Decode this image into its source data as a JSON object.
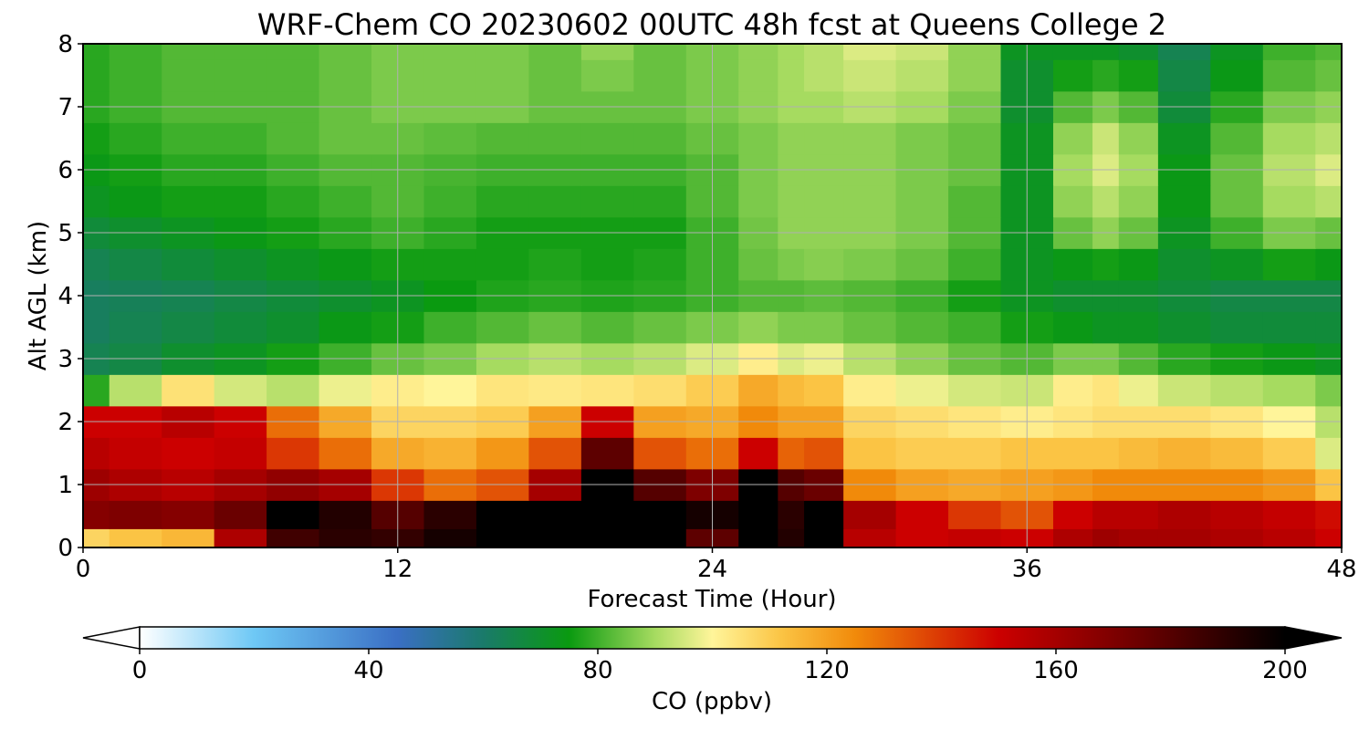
{
  "chart_data": {
    "type": "heatmap",
    "title": "WRF-Chem CO  20230602 00UTC 48h fcst at Queens College 2",
    "xlabel": "Forecast Time (Hour)",
    "ylabel": "Alt AGL (km)",
    "xlim": [
      0,
      48
    ],
    "ylim": [
      0,
      8
    ],
    "xticks": [
      0,
      12,
      24,
      36,
      48
    ],
    "yticks": [
      0,
      1,
      2,
      3,
      4,
      5,
      6,
      7,
      8
    ],
    "grid": true,
    "colorbar": {
      "label": "CO  (ppbv)",
      "range": [
        0,
        200
      ],
      "ticks": [
        0,
        40,
        80,
        120,
        160,
        200
      ],
      "extend": "both",
      "stops": [
        {
          "value": 0,
          "color": "#ffffff"
        },
        {
          "value": 20,
          "color": "#6ec8f5"
        },
        {
          "value": 45,
          "color": "#3a6fc4"
        },
        {
          "value": 60,
          "color": "#1a7a6a"
        },
        {
          "value": 75,
          "color": "#0a9a10"
        },
        {
          "value": 90,
          "color": "#a6db60"
        },
        {
          "value": 100,
          "color": "#fff59a"
        },
        {
          "value": 112,
          "color": "#fbc444"
        },
        {
          "value": 125,
          "color": "#f18a0a"
        },
        {
          "value": 150,
          "color": "#cc0000"
        },
        {
          "value": 175,
          "color": "#6a0000"
        },
        {
          "value": 200,
          "color": "#000000"
        }
      ]
    },
    "hours": [
      0,
      2,
      4,
      6,
      8,
      10,
      12,
      14,
      16,
      18,
      20,
      22,
      24,
      26,
      27,
      28,
      30,
      32,
      34,
      36,
      38,
      39,
      40,
      42,
      44,
      46,
      48
    ],
    "altitudes_km": [
      0.1,
      0.5,
      1.0,
      1.5,
      2.0,
      2.5,
      3.0,
      3.5,
      4.0,
      4.5,
      5.0,
      5.5,
      6.0,
      6.5,
      7.0,
      7.5,
      8.0
    ],
    "co_ppbv": [
      [
        108,
        112,
        115,
        158,
        185,
        190,
        188,
        195,
        200,
        200,
        200,
        200,
        178,
        200,
        192,
        200,
        155,
        150,
        152,
        150,
        158,
        162,
        160,
        160,
        158,
        155,
        150
      ],
      [
        168,
        170,
        168,
        175,
        200,
        192,
        180,
        190,
        200,
        200,
        200,
        200,
        195,
        200,
        190,
        200,
        160,
        150,
        140,
        135,
        150,
        155,
        155,
        158,
        155,
        152,
        148
      ],
      [
        162,
        158,
        155,
        160,
        165,
        160,
        140,
        130,
        135,
        160,
        200,
        180,
        170,
        200,
        180,
        175,
        125,
        120,
        118,
        120,
        122,
        125,
        125,
        125,
        125,
        122,
        112
      ],
      [
        155,
        152,
        150,
        152,
        140,
        130,
        118,
        116,
        122,
        135,
        178,
        135,
        130,
        150,
        132,
        135,
        112,
        110,
        110,
        112,
        112,
        112,
        114,
        116,
        114,
        110,
        96
      ],
      [
        150,
        150,
        155,
        150,
        130,
        118,
        108,
        108,
        110,
        120,
        150,
        120,
        118,
        125,
        120,
        120,
        108,
        106,
        104,
        102,
        104,
        106,
        106,
        106,
        104,
        100,
        92
      ],
      [
        78,
        92,
        105,
        95,
        92,
        98,
        102,
        100,
        104,
        103,
        104,
        106,
        110,
        118,
        114,
        112,
        102,
        98,
        95,
        94,
        102,
        104,
        98,
        94,
        92,
        90,
        86
      ],
      [
        64,
        66,
        70,
        72,
        76,
        80,
        84,
        86,
        90,
        92,
        90,
        92,
        96,
        102,
        96,
        98,
        92,
        88,
        84,
        82,
        86,
        86,
        82,
        78,
        76,
        74,
        72
      ],
      [
        62,
        64,
        66,
        68,
        70,
        74,
        76,
        80,
        82,
        84,
        82,
        84,
        86,
        88,
        86,
        86,
        84,
        82,
        80,
        76,
        74,
        72,
        72,
        70,
        68,
        68,
        68
      ],
      [
        62,
        63,
        64,
        66,
        68,
        70,
        72,
        75,
        77,
        78,
        77,
        78,
        80,
        82,
        82,
        83,
        82,
        80,
        76,
        72,
        70,
        70,
        70,
        68,
        66,
        66,
        66
      ],
      [
        64,
        66,
        68,
        70,
        72,
        74,
        76,
        76,
        76,
        77,
        76,
        77,
        80,
        84,
        86,
        87,
        86,
        84,
        80,
        72,
        74,
        76,
        74,
        70,
        72,
        76,
        74
      ],
      [
        68,
        70,
        72,
        74,
        76,
        78,
        80,
        78,
        76,
        76,
        76,
        76,
        80,
        85,
        88,
        88,
        88,
        86,
        82,
        72,
        84,
        88,
        84,
        72,
        80,
        86,
        84
      ],
      [
        72,
        74,
        76,
        76,
        78,
        80,
        82,
        80,
        78,
        78,
        78,
        78,
        82,
        86,
        88,
        88,
        88,
        86,
        82,
        72,
        88,
        92,
        88,
        74,
        84,
        90,
        92
      ],
      [
        74,
        76,
        78,
        78,
        80,
        82,
        82,
        81,
        80,
        80,
        80,
        80,
        82,
        86,
        88,
        88,
        88,
        86,
        84,
        72,
        90,
        96,
        90,
        74,
        84,
        92,
        96
      ],
      [
        76,
        78,
        80,
        80,
        82,
        84,
        84,
        83,
        82,
        82,
        82,
        82,
        84,
        86,
        88,
        88,
        88,
        86,
        84,
        72,
        88,
        94,
        88,
        72,
        82,
        90,
        92
      ],
      [
        78,
        80,
        82,
        82,
        82,
        84,
        86,
        86,
        86,
        84,
        84,
        84,
        86,
        88,
        90,
        90,
        92,
        90,
        86,
        70,
        82,
        86,
        82,
        68,
        78,
        86,
        88
      ],
      [
        78,
        80,
        82,
        82,
        82,
        84,
        86,
        86,
        86,
        84,
        86,
        84,
        86,
        88,
        90,
        92,
        94,
        92,
        88,
        70,
        76,
        78,
        76,
        66,
        74,
        82,
        84
      ],
      [
        78,
        80,
        82,
        82,
        82,
        84,
        86,
        86,
        86,
        84,
        88,
        84,
        86,
        88,
        90,
        92,
        96,
        94,
        88,
        72,
        72,
        72,
        70,
        64,
        72,
        80,
        82
      ]
    ]
  }
}
